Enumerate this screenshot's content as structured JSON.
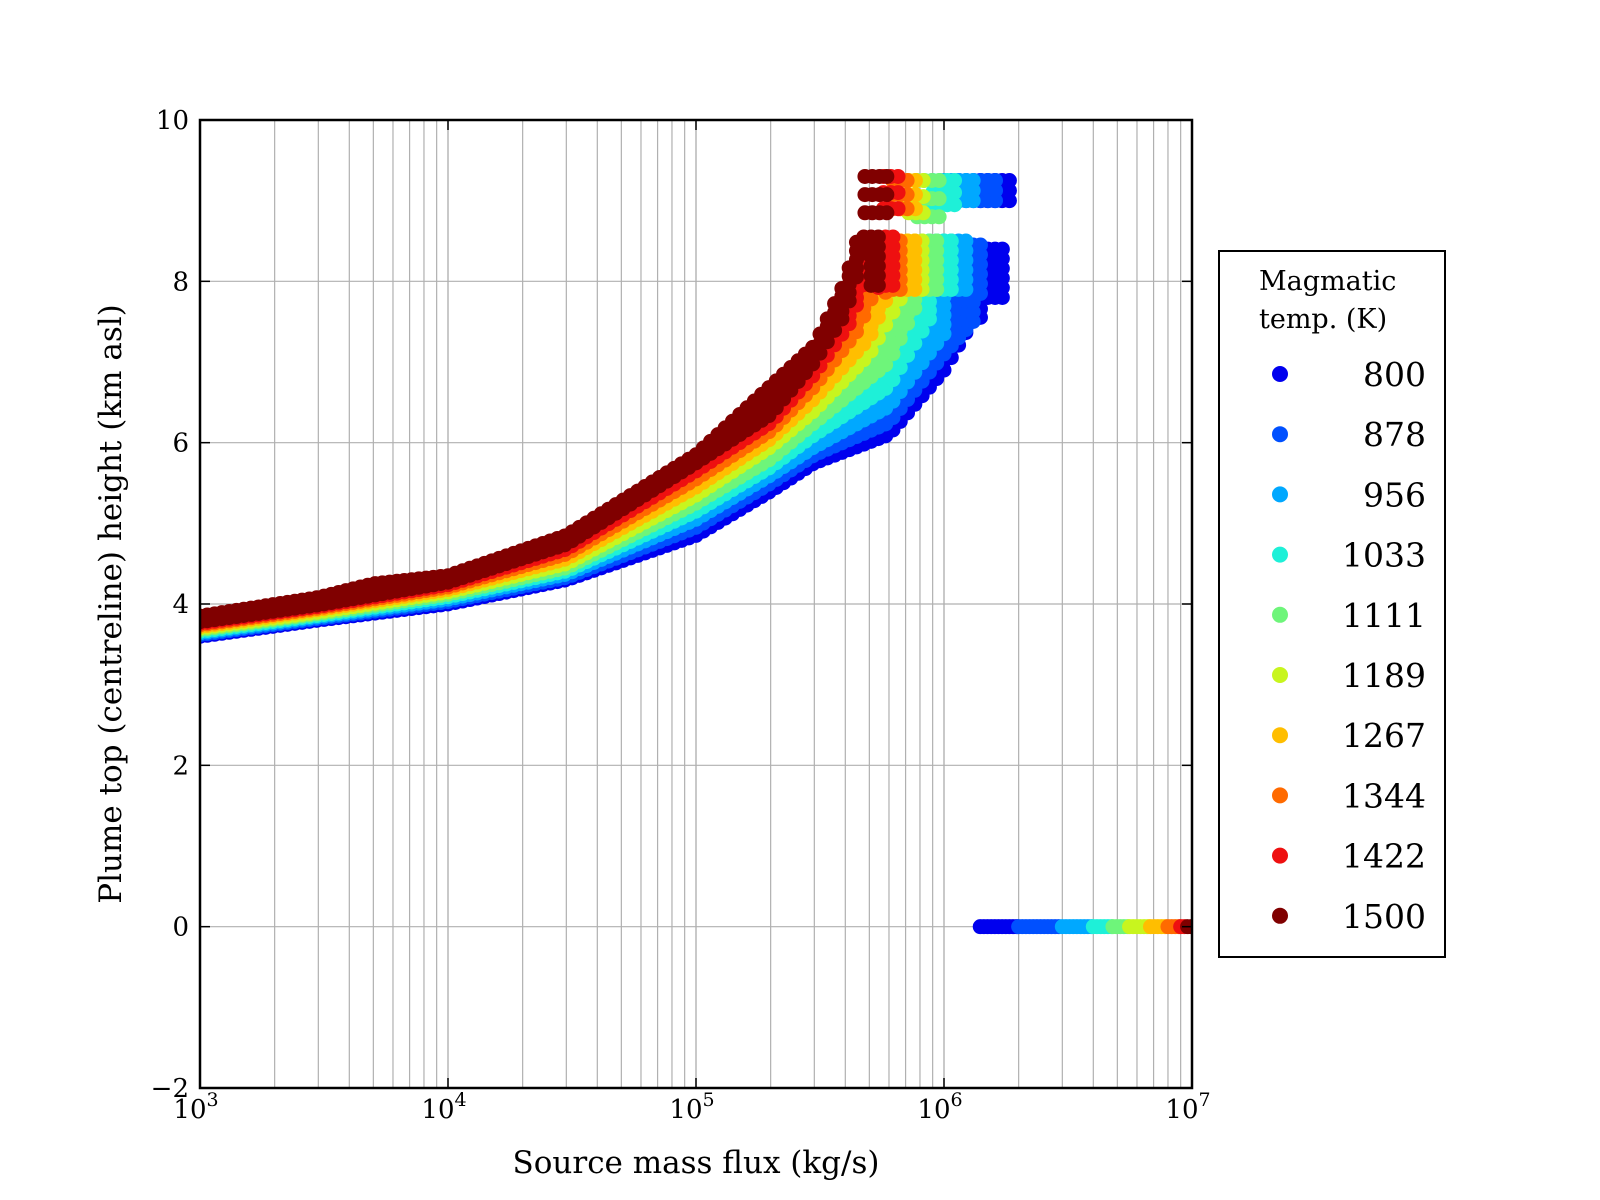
{
  "chart_data": {
    "type": "scatter",
    "title": "",
    "xlabel": "Source mass flux (kg/s)",
    "ylabel": "Plume top (centreline) height (km asl)",
    "xscale": "log",
    "xlim": [
      1000,
      10000000
    ],
    "ylim": [
      -2,
      10
    ],
    "grid": true,
    "x_ticks": [
      {
        "value": 1000,
        "base": "10",
        "exp": "3"
      },
      {
        "value": 10000,
        "base": "10",
        "exp": "4"
      },
      {
        "value": 100000,
        "base": "10",
        "exp": "5"
      },
      {
        "value": 1000000,
        "base": "10",
        "exp": "6"
      },
      {
        "value": 10000000,
        "base": "10",
        "exp": "7"
      }
    ],
    "y_ticks": [
      {
        "value": -2,
        "label": "−2"
      },
      {
        "value": 0,
        "label": "0"
      },
      {
        "value": 2,
        "label": "2"
      },
      {
        "value": 4,
        "label": "4"
      },
      {
        "value": 6,
        "label": "6"
      },
      {
        "value": 8,
        "label": "8"
      },
      {
        "value": 10,
        "label": "10"
      }
    ],
    "legend": {
      "title_lines": [
        "Magmatic",
        "temp. (K)"
      ],
      "placement": "outside-right"
    },
    "series": [
      {
        "name": "800",
        "color": "#0000ee",
        "lower_curve": [
          [
            1000,
            3.6
          ],
          [
            3000,
            3.8
          ],
          [
            10000,
            4.0
          ],
          [
            30000,
            4.3
          ],
          [
            100000,
            4.85
          ],
          [
            200000,
            5.4
          ],
          [
            300000,
            5.75
          ],
          [
            600000,
            6.1
          ],
          [
            1000000,
            6.9
          ],
          [
            1300000,
            7.5
          ],
          [
            1500000,
            7.6
          ]
        ],
        "upper_curve": [
          [
            1000,
            3.62
          ],
          [
            3000,
            3.82
          ],
          [
            10000,
            4.05
          ],
          [
            30000,
            4.33
          ],
          [
            100000,
            4.9
          ],
          [
            300000,
            5.8
          ],
          [
            600000,
            6.5
          ],
          [
            800000,
            7.2
          ],
          [
            1000000,
            8.4
          ],
          [
            1800000,
            8.4
          ]
        ],
        "upper_branch": {
          "x": [
            1400000,
            1950000
          ],
          "y_low": 9.0,
          "y_high": 9.25
        },
        "zero_branch_x": [
          1400000,
          2000000
        ]
      },
      {
        "name": "878",
        "color": "#0050ff",
        "lower_curve": [
          [
            1000,
            3.62
          ],
          [
            3000,
            3.82
          ],
          [
            10000,
            4.03
          ],
          [
            30000,
            4.33
          ],
          [
            100000,
            4.95
          ],
          [
            200000,
            5.5
          ],
          [
            300000,
            5.85
          ],
          [
            600000,
            6.25
          ],
          [
            1000000,
            7.1
          ],
          [
            1400000,
            7.6
          ]
        ],
        "upper_curve": [
          [
            1000,
            3.64
          ],
          [
            3000,
            3.85
          ],
          [
            10000,
            4.08
          ],
          [
            30000,
            4.37
          ],
          [
            100000,
            5.0
          ],
          [
            300000,
            5.9
          ],
          [
            600000,
            6.7
          ],
          [
            800000,
            7.5
          ],
          [
            950000,
            8.45
          ],
          [
            1500000,
            8.45
          ]
        ],
        "upper_branch": {
          "x": [
            1150000,
            1700000
          ],
          "y_low": 9.0,
          "y_high": 9.25
        },
        "zero_branch_x": [
          2000000,
          3000000
        ]
      },
      {
        "name": "956",
        "color": "#00a8ff",
        "lower_curve": [
          [
            1000,
            3.64
          ],
          [
            3000,
            3.84
          ],
          [
            10000,
            4.06
          ],
          [
            30000,
            4.37
          ],
          [
            100000,
            5.05
          ],
          [
            200000,
            5.6
          ],
          [
            300000,
            5.95
          ],
          [
            600000,
            6.45
          ],
          [
            1000000,
            7.35
          ]
        ],
        "upper_curve": [
          [
            1000,
            3.66
          ],
          [
            3000,
            3.87
          ],
          [
            10000,
            4.1
          ],
          [
            30000,
            4.41
          ],
          [
            100000,
            5.1
          ],
          [
            300000,
            6.0
          ],
          [
            600000,
            6.9
          ],
          [
            800000,
            7.8
          ],
          [
            900000,
            8.5
          ],
          [
            1250000,
            8.5
          ]
        ],
        "upper_branch": {
          "x": [
            1000000,
            1400000
          ],
          "y_low": 9.0,
          "y_high": 9.25
        },
        "zero_branch_x": [
          3000000,
          4000000
        ]
      },
      {
        "name": "1033",
        "color": "#1ef0d8",
        "lower_curve": [
          [
            1000,
            3.66
          ],
          [
            3000,
            3.86
          ],
          [
            10000,
            4.09
          ],
          [
            30000,
            4.41
          ],
          [
            100000,
            5.15
          ],
          [
            200000,
            5.7
          ],
          [
            300000,
            6.1
          ],
          [
            600000,
            6.7
          ],
          [
            900000,
            7.6
          ]
        ],
        "upper_curve": [
          [
            1000,
            3.68
          ],
          [
            3000,
            3.9
          ],
          [
            10000,
            4.13
          ],
          [
            30000,
            4.45
          ],
          [
            100000,
            5.2
          ],
          [
            300000,
            6.15
          ],
          [
            600000,
            7.15
          ],
          [
            750000,
            8.0
          ],
          [
            850000,
            8.5
          ],
          [
            1100000,
            8.5
          ]
        ],
        "upper_branch": {
          "x": [
            900000,
            1150000
          ],
          "y_low": 8.95,
          "y_high": 9.25
        },
        "zero_branch_x": [
          4000000,
          4800000
        ]
      },
      {
        "name": "1111",
        "color": "#6ef57a",
        "lower_curve": [
          [
            1000,
            3.68
          ],
          [
            3000,
            3.88
          ],
          [
            10000,
            4.12
          ],
          [
            30000,
            4.45
          ],
          [
            100000,
            5.25
          ],
          [
            200000,
            5.8
          ],
          [
            300000,
            6.25
          ],
          [
            600000,
            7.0
          ],
          [
            800000,
            7.8
          ]
        ],
        "upper_curve": [
          [
            1000,
            3.7
          ],
          [
            3000,
            3.92
          ],
          [
            10000,
            4.16
          ],
          [
            30000,
            4.5
          ],
          [
            100000,
            5.3
          ],
          [
            300000,
            6.3
          ],
          [
            600000,
            7.4
          ],
          [
            800000,
            8.5
          ],
          [
            950000,
            8.5
          ]
        ],
        "upper_branch": {
          "x": [
            780000,
            1000000
          ],
          "y_low": 8.8,
          "y_high": 9.25
        },
        "zero_branch_x": [
          4800000,
          5600000
        ]
      },
      {
        "name": "1189",
        "color": "#c8f51e",
        "lower_curve": [
          [
            1000,
            3.7
          ],
          [
            3000,
            3.9
          ],
          [
            10000,
            4.15
          ],
          [
            30000,
            4.5
          ],
          [
            100000,
            5.35
          ],
          [
            200000,
            5.95
          ],
          [
            300000,
            6.4
          ],
          [
            500000,
            7.1
          ],
          [
            700000,
            7.9
          ]
        ],
        "upper_curve": [
          [
            1000,
            3.72
          ],
          [
            3000,
            3.94
          ],
          [
            10000,
            4.19
          ],
          [
            30000,
            4.55
          ],
          [
            100000,
            5.4
          ],
          [
            300000,
            6.5
          ],
          [
            500000,
            7.4
          ],
          [
            650000,
            8.2
          ],
          [
            700000,
            8.5
          ],
          [
            850000,
            8.5
          ]
        ],
        "upper_branch": {
          "x": [
            720000,
            880000
          ],
          "y_low": 8.85,
          "y_high": 9.25
        },
        "zero_branch_x": [
          5600000,
          6800000
        ]
      },
      {
        "name": "1267",
        "color": "#ffbe00",
        "lower_curve": [
          [
            1000,
            3.72
          ],
          [
            3000,
            3.93
          ],
          [
            10000,
            4.18
          ],
          [
            30000,
            4.56
          ],
          [
            100000,
            5.45
          ],
          [
            200000,
            6.05
          ],
          [
            300000,
            6.55
          ],
          [
            500000,
            7.3
          ],
          [
            650000,
            8.1
          ]
        ],
        "upper_curve": [
          [
            1000,
            3.74
          ],
          [
            3000,
            3.96
          ],
          [
            10000,
            4.22
          ],
          [
            30000,
            4.6
          ],
          [
            100000,
            5.5
          ],
          [
            300000,
            6.7
          ],
          [
            500000,
            7.7
          ],
          [
            600000,
            8.3
          ],
          [
            650000,
            8.5
          ],
          [
            780000,
            8.5
          ]
        ],
        "upper_branch": {
          "x": [
            670000,
            800000
          ],
          "y_low": 8.9,
          "y_high": 9.25
        },
        "zero_branch_x": [
          6800000,
          8000000
        ]
      },
      {
        "name": "1344",
        "color": "#ff6a00",
        "lower_curve": [
          [
            1000,
            3.74
          ],
          [
            3000,
            3.95
          ],
          [
            10000,
            4.21
          ],
          [
            30000,
            4.62
          ],
          [
            100000,
            5.55
          ],
          [
            200000,
            6.15
          ],
          [
            300000,
            6.7
          ],
          [
            450000,
            7.4
          ],
          [
            580000,
            8.2
          ]
        ],
        "upper_curve": [
          [
            1000,
            3.76
          ],
          [
            3000,
            3.98
          ],
          [
            10000,
            4.25
          ],
          [
            30000,
            4.66
          ],
          [
            100000,
            5.6
          ],
          [
            300000,
            6.85
          ],
          [
            450000,
            7.8
          ],
          [
            550000,
            8.4
          ],
          [
            600000,
            8.5
          ],
          [
            700000,
            8.5
          ]
        ],
        "upper_branch": {
          "x": [
            620000,
            740000
          ],
          "y_low": 8.9,
          "y_high": 9.25
        },
        "zero_branch_x": [
          8000000,
          9000000
        ]
      },
      {
        "name": "1422",
        "color": "#ee1010",
        "lower_curve": [
          [
            1000,
            3.76
          ],
          [
            3000,
            3.97
          ],
          [
            10000,
            4.24
          ],
          [
            30000,
            4.68
          ],
          [
            100000,
            5.65
          ],
          [
            200000,
            6.25
          ],
          [
            300000,
            6.85
          ],
          [
            420000,
            7.5
          ],
          [
            520000,
            8.3
          ]
        ],
        "upper_curve": [
          [
            1000,
            3.78
          ],
          [
            3000,
            4.0
          ],
          [
            10000,
            4.28
          ],
          [
            30000,
            4.72
          ],
          [
            100000,
            5.7
          ],
          [
            300000,
            7.0
          ],
          [
            420000,
            7.9
          ],
          [
            500000,
            8.45
          ],
          [
            560000,
            8.55
          ],
          [
            640000,
            8.55
          ]
        ],
        "upper_branch": {
          "x": [
            570000,
            680000
          ],
          "y_low": 8.9,
          "y_high": 9.3
        },
        "zero_branch_x": [
          9000000,
          9600000
        ]
      },
      {
        "name": "1500",
        "color": "#800000",
        "lower_curve": [
          [
            1000,
            3.78
          ],
          [
            3000,
            3.99
          ],
          [
            10000,
            4.27
          ],
          [
            30000,
            4.74
          ],
          [
            100000,
            5.75
          ],
          [
            200000,
            6.35
          ],
          [
            300000,
            7.0
          ],
          [
            400000,
            7.6
          ],
          [
            480000,
            8.4
          ]
        ],
        "upper_curve": [
          [
            1000,
            3.85
          ],
          [
            3000,
            4.08
          ],
          [
            5000,
            4.25
          ],
          [
            10000,
            4.35
          ],
          [
            30000,
            4.85
          ],
          [
            100000,
            5.85
          ],
          [
            300000,
            7.2
          ],
          [
            400000,
            8.0
          ],
          [
            450000,
            8.55
          ],
          [
            550000,
            8.55
          ]
        ],
        "upper_branch": {
          "x": [
            480000,
            620000
          ],
          "y_low": 8.85,
          "y_high": 9.3
        },
        "zero_branch_x": [
          9600000,
          10000000
        ]
      }
    ]
  }
}
